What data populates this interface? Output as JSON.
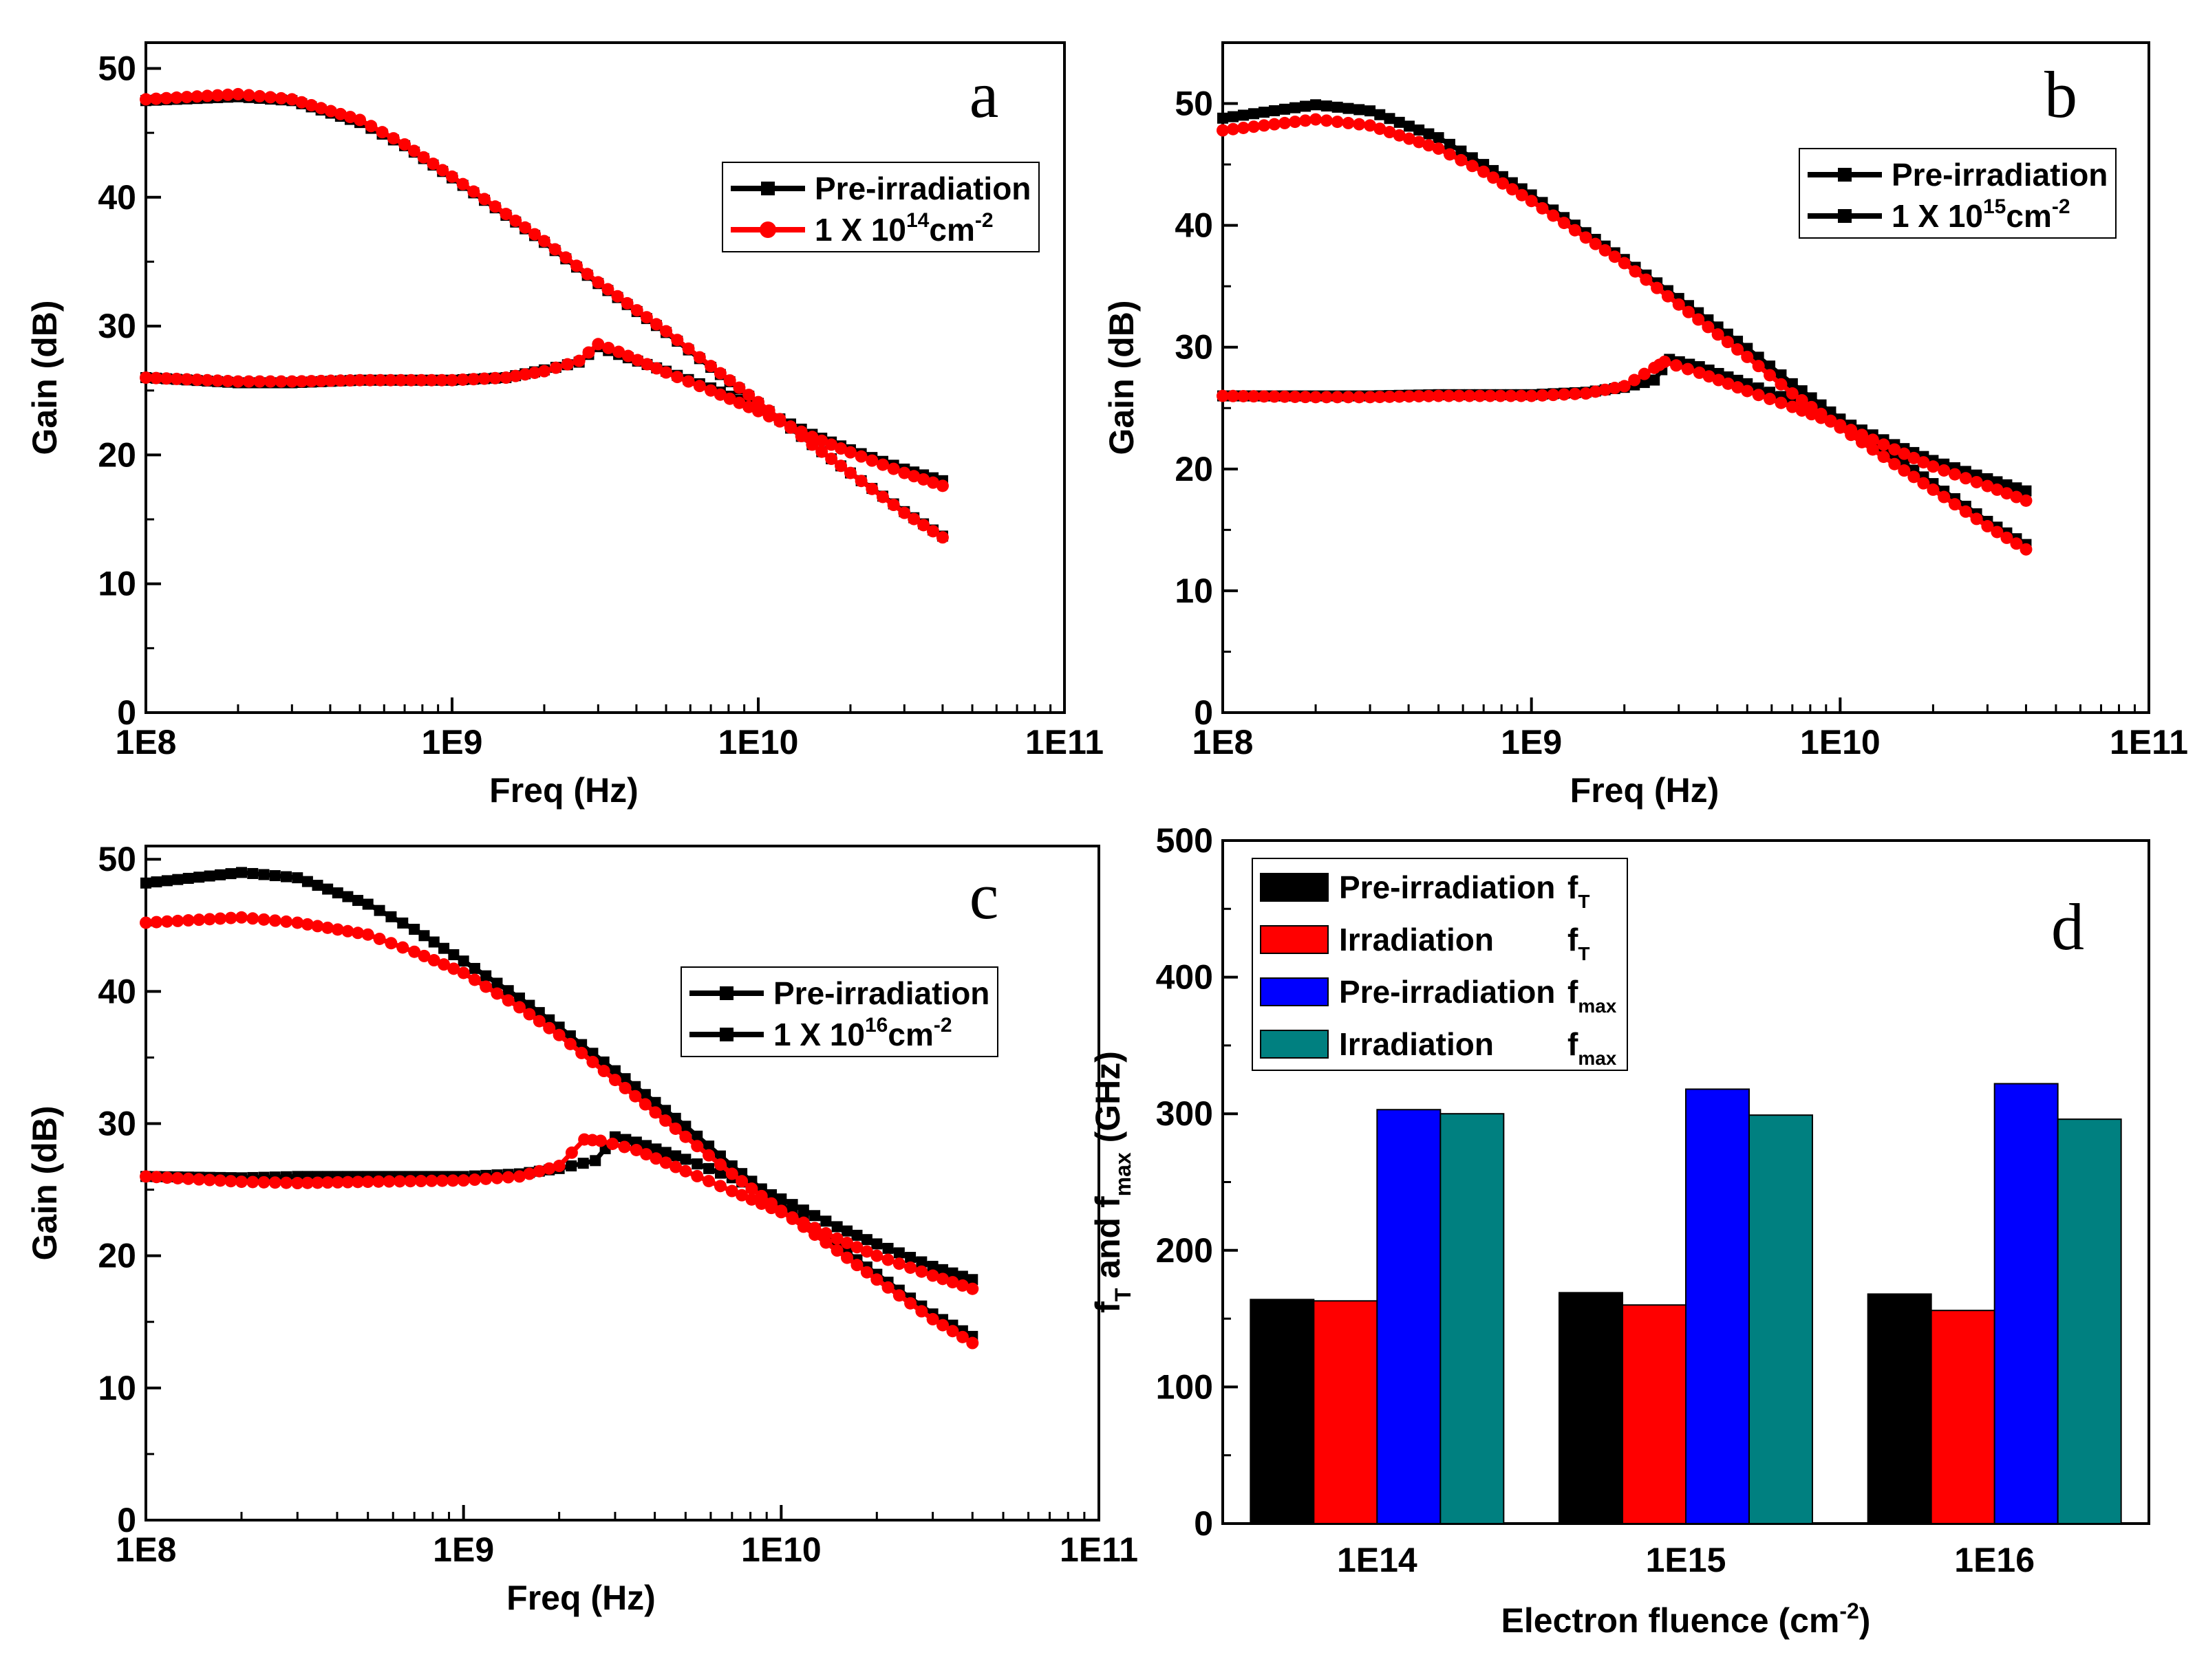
{
  "figure": {
    "colors": {
      "black": "#000000",
      "red": "#ff0000",
      "blue": "#0000ff",
      "teal": "#008080"
    }
  },
  "chart_data": [
    {
      "panel": "a",
      "type": "line",
      "x_scale": "log",
      "xlim": [
        100000000,
        100000000000
      ],
      "ylim": [
        0,
        52
      ],
      "xlabel": "Freq (Hz)",
      "ylabel": "Gain (dB)",
      "x_tick_labels": [
        "1E8",
        "1E9",
        "1E10",
        "1E11"
      ],
      "y_tick_labels": [
        "0",
        "10",
        "20",
        "30",
        "40",
        "50"
      ],
      "legend": [
        {
          "label": "Pre-irradiation",
          "sup": "",
          "tail": "",
          "color": "#000000",
          "marker": "square"
        },
        {
          "label": "1 X 10",
          "sup": "14",
          "tail": "cm",
          "sup2": "-2",
          "color": "#ff0000",
          "marker": "circle"
        }
      ],
      "legend_position": "top-right",
      "series": [
        {
          "name": "Pre-irradiation (upper)",
          "color": "#000000",
          "marker": "square",
          "x": [
            100000000,
            200000000,
            300000000,
            500000000,
            700000000,
            1000000000,
            1500000000,
            2000000000,
            3000000000,
            5000000000,
            7000000000,
            10000000000,
            15000000000,
            20000000000,
            30000000000,
            40000000000
          ],
          "y": [
            47.5,
            47.8,
            47.5,
            45.8,
            44.0,
            41.5,
            38.6,
            36.5,
            33.3,
            29.5,
            26.8,
            24.0,
            20.8,
            18.6,
            15.6,
            13.7
          ]
        },
        {
          "name": "Pre-irradiation (lower)",
          "color": "#000000",
          "marker": "square",
          "x": [
            100000000,
            200000000,
            300000000,
            500000000,
            1000000000,
            1500000000,
            2000000000,
            2600000000,
            3000000000,
            3500000000,
            5000000000,
            7000000000,
            10000000000,
            15000000000,
            20000000000,
            30000000000,
            40000000000
          ],
          "y": [
            26.0,
            25.6,
            25.6,
            25.8,
            25.8,
            26.0,
            26.6,
            27.2,
            28.4,
            27.8,
            26.5,
            25.2,
            23.6,
            21.6,
            20.4,
            18.9,
            18.0
          ]
        },
        {
          "name": "1 X 10^14 cm^-2 (upper)",
          "color": "#ff0000",
          "marker": "circle",
          "x": [
            100000000,
            200000000,
            300000000,
            500000000,
            700000000,
            1000000000,
            1500000000,
            2000000000,
            3000000000,
            5000000000,
            7000000000,
            10000000000,
            15000000000,
            20000000000,
            30000000000,
            40000000000
          ],
          "y": [
            47.6,
            48.0,
            47.6,
            46.0,
            44.1,
            41.6,
            38.7,
            36.6,
            33.4,
            29.6,
            26.9,
            24.1,
            20.8,
            18.6,
            15.5,
            13.6
          ]
        },
        {
          "name": "1 X 10^14 cm^-2 (lower)",
          "color": "#ff0000",
          "marker": "circle",
          "x": [
            100000000,
            200000000,
            300000000,
            500000000,
            1000000000,
            1500000000,
            2000000000,
            2600000000,
            3000000000,
            3500000000,
            5000000000,
            7000000000,
            10000000000,
            15000000000,
            20000000000,
            30000000000,
            40000000000
          ],
          "y": [
            26.0,
            25.7,
            25.7,
            25.8,
            25.8,
            26.0,
            26.5,
            27.3,
            28.6,
            28.0,
            26.4,
            25.0,
            23.4,
            21.4,
            20.2,
            18.6,
            17.6
          ]
        }
      ]
    },
    {
      "panel": "b",
      "type": "line",
      "x_scale": "log",
      "xlim": [
        100000000,
        100000000000
      ],
      "ylim": [
        0,
        55
      ],
      "xlabel": "Freq (Hz)",
      "ylabel": "Gain (dB)",
      "x_tick_labels": [
        "1E8",
        "1E9",
        "1E10",
        "1E11"
      ],
      "y_tick_labels": [
        "0",
        "10",
        "20",
        "30",
        "40",
        "50"
      ],
      "legend": [
        {
          "label": "Pre-irradiation",
          "sup": "",
          "tail": "",
          "color": "#000000",
          "marker": "square"
        },
        {
          "label": "1 X 10",
          "sup": "15",
          "tail": "cm",
          "sup2": "-2",
          "color": "#000000",
          "marker": "square"
        }
      ],
      "legend_position": "top-right",
      "series": [
        {
          "name": "Pre-irradiation (upper)",
          "color": "#000000",
          "marker": "square",
          "x": [
            100000000,
            200000000,
            300000000,
            500000000,
            700000000,
            1000000000,
            1500000000,
            2000000000,
            3000000000,
            5000000000,
            7000000000,
            10000000000,
            15000000000,
            20000000000,
            30000000000,
            40000000000
          ],
          "y": [
            48.8,
            49.9,
            49.4,
            47.2,
            45.0,
            42.5,
            39.4,
            37.2,
            34.0,
            29.9,
            27.0,
            24.1,
            21.0,
            18.8,
            15.7,
            13.8
          ]
        },
        {
          "name": "Pre-irradiation (lower)",
          "color": "#000000",
          "marker": "square",
          "x": [
            100000000,
            200000000,
            300000000,
            500000000,
            1000000000,
            1500000000,
            2000000000,
            2500000000,
            2800000000,
            3500000000,
            5000000000,
            7000000000,
            10000000000,
            15000000000,
            20000000000,
            30000000000,
            40000000000
          ],
          "y": [
            26.0,
            26.0,
            26.0,
            26.1,
            26.1,
            26.3,
            26.7,
            27.3,
            29.0,
            28.4,
            27.0,
            25.6,
            24.0,
            22.0,
            20.7,
            19.2,
            18.2
          ]
        },
        {
          "name": "1 X 10^15 cm^-2 (upper)",
          "color": "#ff0000",
          "marker": "circle",
          "x": [
            100000000,
            200000000,
            300000000,
            500000000,
            700000000,
            1000000000,
            1500000000,
            2000000000,
            3000000000,
            5000000000,
            7000000000,
            10000000000,
            15000000000,
            20000000000,
            30000000000,
            40000000000
          ],
          "y": [
            47.8,
            48.7,
            48.2,
            46.3,
            44.4,
            42.0,
            39.0,
            36.9,
            33.5,
            29.2,
            26.2,
            23.4,
            20.4,
            18.3,
            15.3,
            13.4
          ]
        },
        {
          "name": "1 X 10^15 cm^-2 (lower)",
          "color": "#ff0000",
          "marker": "circle",
          "x": [
            100000000,
            200000000,
            300000000,
            500000000,
            1000000000,
            1500000000,
            2000000000,
            2500000000,
            2700000000,
            3500000000,
            5000000000,
            7000000000,
            10000000000,
            15000000000,
            20000000000,
            30000000000,
            40000000000
          ],
          "y": [
            26.0,
            25.9,
            25.9,
            26.0,
            26.0,
            26.2,
            26.8,
            28.3,
            28.8,
            27.9,
            26.4,
            25.1,
            23.6,
            21.6,
            20.2,
            18.6,
            17.4
          ]
        }
      ]
    },
    {
      "panel": "c",
      "type": "line",
      "x_scale": "log",
      "xlim": [
        100000000,
        100000000000
      ],
      "ylim": [
        0,
        51
      ],
      "xlabel": "Freq (Hz)",
      "ylabel": "Gain (dB)",
      "x_tick_labels": [
        "1E8",
        "1E9",
        "1E10",
        "1E11"
      ],
      "y_tick_labels": [
        "0",
        "10",
        "20",
        "30",
        "40",
        "50"
      ],
      "legend": [
        {
          "label": "Pre-irradiation",
          "sup": "",
          "tail": "",
          "color": "#000000",
          "marker": "square"
        },
        {
          "label": "1 X 10",
          "sup": "16",
          "tail": "cm",
          "sup2": "-2",
          "color": "#000000",
          "marker": "square"
        }
      ],
      "legend_position": "top-right",
      "series": [
        {
          "name": "Pre-irradiation (upper)",
          "color": "#000000",
          "marker": "square",
          "x": [
            100000000,
            200000000,
            300000000,
            500000000,
            700000000,
            1000000000,
            1500000000,
            2000000000,
            3000000000,
            5000000000,
            7000000000,
            10000000000,
            15000000000,
            20000000000,
            30000000000,
            40000000000
          ],
          "y": [
            48.2,
            49.0,
            48.6,
            46.6,
            44.7,
            42.3,
            39.5,
            37.3,
            34.0,
            29.8,
            26.8,
            23.9,
            20.8,
            18.6,
            15.6,
            13.9
          ]
        },
        {
          "name": "Pre-irradiation (lower)",
          "color": "#000000",
          "marker": "square",
          "x": [
            100000000,
            200000000,
            300000000,
            500000000,
            1000000000,
            1500000000,
            2000000000,
            2600000000,
            3000000000,
            3500000000,
            5000000000,
            7000000000,
            10000000000,
            15000000000,
            20000000000,
            30000000000,
            40000000000
          ],
          "y": [
            26.0,
            25.9,
            26.0,
            26.0,
            26.0,
            26.2,
            26.6,
            27.2,
            29.0,
            28.6,
            27.3,
            25.9,
            24.3,
            22.2,
            20.9,
            19.2,
            18.2
          ]
        },
        {
          "name": "1 X 10^16 cm^-2 (upper)",
          "color": "#ff0000",
          "marker": "circle",
          "x": [
            100000000,
            200000000,
            300000000,
            500000000,
            700000000,
            1000000000,
            1500000000,
            2000000000,
            3000000000,
            5000000000,
            7000000000,
            10000000000,
            15000000000,
            20000000000,
            30000000000,
            40000000000
          ],
          "y": [
            45.2,
            45.6,
            45.2,
            44.3,
            43.0,
            41.4,
            38.8,
            36.7,
            33.3,
            29.0,
            26.2,
            23.4,
            20.4,
            18.2,
            15.2,
            13.4
          ]
        },
        {
          "name": "1 X 10^16 cm^-2 (lower)",
          "color": "#ff0000",
          "marker": "circle",
          "x": [
            100000000,
            200000000,
            300000000,
            500000000,
            1000000000,
            1500000000,
            2000000000,
            2400000000,
            2700000000,
            3500000000,
            5000000000,
            7000000000,
            10000000000,
            15000000000,
            20000000000,
            30000000000,
            40000000000
          ],
          "y": [
            26.0,
            25.6,
            25.5,
            25.6,
            25.7,
            26.0,
            26.8,
            28.8,
            28.7,
            28.0,
            26.4,
            24.9,
            23.3,
            21.3,
            20.0,
            18.5,
            17.5
          ]
        }
      ]
    },
    {
      "panel": "d",
      "type": "bar",
      "categories": [
        "1E14",
        "1E15",
        "1E16"
      ],
      "xlabel": "Electron fluence (cm",
      "xlabel_sup": "-2",
      "xlabel_tail": ")",
      "ylabel_parts": {
        "f1": "f",
        "sub1": "T",
        "mid": " and f",
        "sub2": "max",
        "tail": "  (GHz)"
      },
      "ylim": [
        0,
        500
      ],
      "y_tick_labels": [
        "0",
        "100",
        "200",
        "300",
        "400",
        "500"
      ],
      "legend_position": "top-left",
      "series": [
        {
          "name": "Pre-irradiation",
          "symbol": "f",
          "sub": "T",
          "color": "#000000",
          "values": [
            164,
            169,
            168
          ]
        },
        {
          "name": "Irradiation",
          "symbol": "f",
          "sub": "T",
          "color": "#ff0000",
          "values": [
            163,
            160,
            156
          ]
        },
        {
          "name": "Pre-irradiation",
          "symbol": "f",
          "sub": "max",
          "color": "#0000ff",
          "values": [
            303,
            318,
            322
          ]
        },
        {
          "name": "Irradiation",
          "symbol": "f",
          "sub": "max",
          "color": "#008080",
          "values": [
            300,
            299,
            296
          ]
        }
      ]
    }
  ]
}
